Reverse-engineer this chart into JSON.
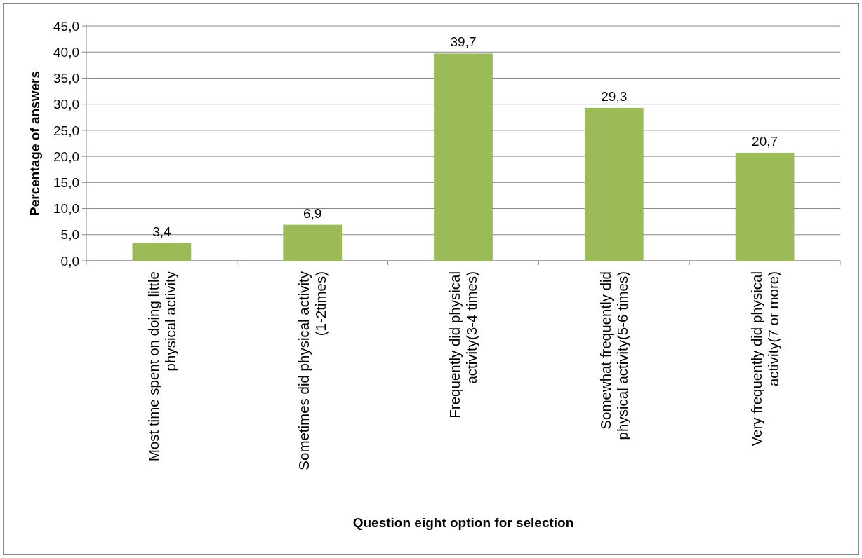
{
  "chart_data": {
    "type": "bar",
    "xlabel": "Question eight option for selection",
    "ylabel": "Percentage of answers",
    "categories": [
      "Most time spent on doing little physical activity",
      "Sometimes did physical activity (1-2times)",
      "Frequently did physical activity(3-4 times)",
      "Somewhat frequently did physical activity(5-6 times)",
      "Very frequently did physical activity(7 or more)"
    ],
    "values": [
      3.4,
      6.9,
      39.7,
      29.3,
      20.7
    ],
    "value_labels": [
      "3,4",
      "6,9",
      "39,7",
      "29,3",
      "20,7"
    ],
    "color": "#9bbb59",
    "ylim": [
      0,
      45
    ],
    "yticks": [
      {
        "value": 0,
        "label": "0,0"
      },
      {
        "value": 5,
        "label": "5,0"
      },
      {
        "value": 10,
        "label": "10,0"
      },
      {
        "value": 15,
        "label": "15,0"
      },
      {
        "value": 20,
        "label": "20,0"
      },
      {
        "value": 25,
        "label": "25,0"
      },
      {
        "value": 30,
        "label": "30,0"
      },
      {
        "value": 35,
        "label": "35,0"
      },
      {
        "value": 40,
        "label": "40,0"
      },
      {
        "value": 45,
        "label": "45,0"
      }
    ],
    "grid": "y"
  }
}
